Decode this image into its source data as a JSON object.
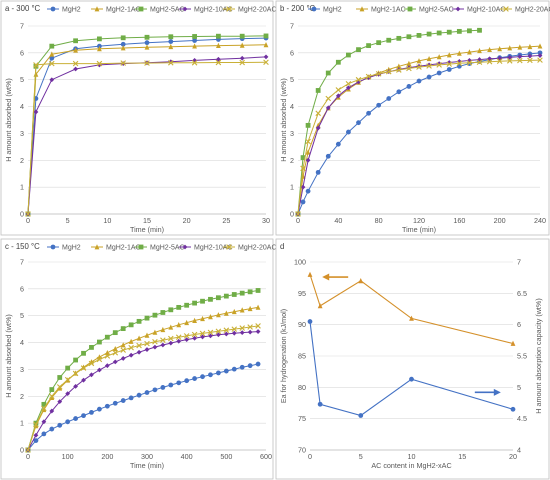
{
  "colors": {
    "MgH2": "#4472c4",
    "MgH2-1AC": "#c9a227",
    "MgH2-5AC": "#70ad47",
    "MgH2-10AC": "#7030a0",
    "MgH2-20AC": "#c9b037",
    "orange": "#d4902a"
  },
  "chart_data": [
    {
      "panel": "a",
      "type": "line",
      "title": "a - 300 °C",
      "xlabel": "Time (min)",
      "ylabel": "H amount absorbed (wt%)",
      "xlim": [
        0,
        30
      ],
      "ylim": [
        0,
        7
      ],
      "xticks": [
        0,
        5,
        10,
        15,
        20,
        25,
        30
      ],
      "yticks": [
        0,
        1,
        2,
        3,
        4,
        5,
        6,
        7
      ],
      "legend": "top",
      "series": [
        {
          "name": "MgH2",
          "marker": "circle",
          "x": [
            0,
            1,
            3,
            6,
            9,
            12,
            15,
            18,
            21,
            24,
            27,
            30
          ],
          "y": [
            0,
            4.3,
            5.8,
            6.15,
            6.25,
            6.32,
            6.38,
            6.42,
            6.46,
            6.5,
            6.53,
            6.55
          ]
        },
        {
          "name": "MgH2-1AC",
          "marker": "triangle",
          "x": [
            0,
            1,
            3,
            6,
            9,
            12,
            15,
            18,
            21,
            24,
            27,
            30
          ],
          "y": [
            0,
            5.2,
            5.95,
            6.1,
            6.15,
            6.18,
            6.21,
            6.23,
            6.25,
            6.27,
            6.28,
            6.3
          ]
        },
        {
          "name": "MgH2-5AC",
          "marker": "square",
          "x": [
            0,
            1,
            3,
            6,
            9,
            12,
            15,
            18,
            21,
            24,
            27,
            30
          ],
          "y": [
            0,
            5.5,
            6.25,
            6.45,
            6.52,
            6.56,
            6.58,
            6.6,
            6.61,
            6.62,
            6.62,
            6.63
          ]
        },
        {
          "name": "MgH2-10AC",
          "marker": "diamond",
          "x": [
            0,
            1,
            3,
            6,
            9,
            12,
            15,
            18,
            21,
            24,
            27,
            30
          ],
          "y": [
            0,
            3.8,
            5.0,
            5.4,
            5.55,
            5.6,
            5.63,
            5.67,
            5.72,
            5.76,
            5.8,
            5.85
          ]
        },
        {
          "name": "MgH2-20AC",
          "marker": "x",
          "x": [
            0,
            1,
            3,
            6,
            9,
            12,
            15,
            18,
            21,
            24,
            27,
            30
          ],
          "y": [
            0,
            5.55,
            5.6,
            5.6,
            5.6,
            5.62,
            5.62,
            5.63,
            5.63,
            5.64,
            5.64,
            5.65
          ]
        }
      ]
    },
    {
      "panel": "b",
      "type": "line",
      "title": "b - 200 °C",
      "xlabel": "Time (min)",
      "ylabel": "H amount absorbed (wt%)",
      "xlim": [
        0,
        240
      ],
      "ylim": [
        0,
        7
      ],
      "xticks": [
        0,
        40,
        80,
        120,
        160,
        200,
        240
      ],
      "yticks": [
        0,
        1,
        2,
        3,
        4,
        5,
        6,
        7
      ],
      "legend": "top",
      "series": [
        {
          "name": "MgH2",
          "marker": "circle",
          "x": [
            0,
            5,
            10,
            20,
            30,
            40,
            50,
            60,
            70,
            80,
            90,
            100,
            110,
            120,
            130,
            140,
            150,
            160,
            170,
            180,
            190,
            200,
            210,
            220,
            230,
            240
          ],
          "y": [
            0,
            0.45,
            0.85,
            1.55,
            2.15,
            2.6,
            3.05,
            3.4,
            3.75,
            4.05,
            4.3,
            4.55,
            4.75,
            4.95,
            5.1,
            5.25,
            5.38,
            5.5,
            5.6,
            5.68,
            5.75,
            5.82,
            5.87,
            5.92,
            5.96,
            6.0
          ]
        },
        {
          "name": "MgH2-1AC",
          "marker": "triangle",
          "x": [
            0,
            5,
            10,
            20,
            30,
            40,
            50,
            60,
            70,
            80,
            90,
            100,
            110,
            120,
            130,
            140,
            150,
            160,
            170,
            180,
            190,
            200,
            210,
            220,
            230,
            240
          ],
          "y": [
            0,
            1.4,
            2.3,
            3.3,
            3.95,
            4.35,
            4.65,
            4.9,
            5.1,
            5.25,
            5.38,
            5.5,
            5.6,
            5.7,
            5.78,
            5.85,
            5.92,
            5.98,
            6.03,
            6.08,
            6.12,
            6.15,
            6.18,
            6.21,
            6.23,
            6.25
          ]
        },
        {
          "name": "MgH2-5AC",
          "marker": "square",
          "x": [
            0,
            5,
            10,
            20,
            30,
            40,
            50,
            60,
            70,
            80,
            90,
            100,
            110,
            120,
            130,
            140,
            150,
            160,
            170,
            180
          ],
          "y": [
            0,
            2.1,
            3.3,
            4.6,
            5.25,
            5.65,
            5.92,
            6.12,
            6.27,
            6.38,
            6.47,
            6.54,
            6.6,
            6.65,
            6.7,
            6.74,
            6.77,
            6.8,
            6.82,
            6.84
          ]
        },
        {
          "name": "MgH2-10AC",
          "marker": "diamond",
          "x": [
            0,
            5,
            10,
            20,
            30,
            40,
            50,
            60,
            70,
            80,
            90,
            100,
            110,
            120,
            130,
            140,
            150,
            160,
            170,
            180,
            190,
            200,
            210,
            220,
            230,
            240
          ],
          "y": [
            0,
            1.0,
            2.0,
            3.2,
            3.95,
            4.4,
            4.7,
            4.92,
            5.08,
            5.2,
            5.3,
            5.38,
            5.45,
            5.5,
            5.55,
            5.6,
            5.64,
            5.68,
            5.72,
            5.75,
            5.78,
            5.8,
            5.83,
            5.86,
            5.88,
            5.9
          ]
        },
        {
          "name": "MgH2-20AC",
          "marker": "x",
          "x": [
            0,
            5,
            10,
            20,
            30,
            40,
            50,
            60,
            70,
            80,
            90,
            100,
            110,
            120,
            130,
            140,
            150,
            160,
            170,
            180,
            190,
            200,
            210,
            220,
            230,
            240
          ],
          "y": [
            0,
            1.7,
            2.7,
            3.75,
            4.3,
            4.62,
            4.85,
            5.0,
            5.12,
            5.22,
            5.3,
            5.36,
            5.42,
            5.47,
            5.51,
            5.55,
            5.58,
            5.61,
            5.63,
            5.65,
            5.67,
            5.69,
            5.7,
            5.71,
            5.72,
            5.73
          ]
        }
      ]
    },
    {
      "panel": "c",
      "type": "line",
      "title": "c - 150 °C",
      "xlabel": "Time (min)",
      "ylabel": "H amount absorbed (wt%)",
      "xlim": [
        0,
        600
      ],
      "ylim": [
        0,
        7
      ],
      "xticks": [
        0,
        100,
        200,
        300,
        400,
        500,
        600
      ],
      "yticks": [
        0,
        1,
        2,
        3,
        4,
        5,
        6,
        7
      ],
      "legend": "top",
      "series": [
        {
          "name": "MgH2",
          "marker": "circle",
          "x": [
            0,
            20,
            40,
            60,
            80,
            100,
            120,
            140,
            160,
            180,
            200,
            220,
            240,
            260,
            280,
            300,
            320,
            340,
            360,
            380,
            400,
            420,
            440,
            460,
            480,
            500,
            520,
            540,
            560,
            580
          ],
          "y": [
            0,
            0.35,
            0.6,
            0.78,
            0.92,
            1.05,
            1.17,
            1.28,
            1.4,
            1.52,
            1.63,
            1.74,
            1.84,
            1.94,
            2.04,
            2.14,
            2.24,
            2.33,
            2.42,
            2.5,
            2.58,
            2.66,
            2.73,
            2.8,
            2.87,
            2.94,
            3.01,
            3.08,
            3.14,
            3.2
          ]
        },
        {
          "name": "MgH2-1AC",
          "marker": "triangle",
          "x": [
            0,
            20,
            40,
            60,
            80,
            100,
            120,
            140,
            160,
            180,
            200,
            220,
            240,
            260,
            280,
            300,
            320,
            340,
            360,
            380,
            400,
            420,
            440,
            460,
            480,
            500,
            520,
            540,
            560,
            580
          ],
          "y": [
            0,
            0.9,
            1.5,
            1.95,
            2.3,
            2.6,
            2.86,
            3.08,
            3.28,
            3.46,
            3.62,
            3.77,
            3.91,
            4.04,
            4.16,
            4.27,
            4.38,
            4.48,
            4.57,
            4.66,
            4.74,
            4.82,
            4.89,
            4.96,
            5.03,
            5.09,
            5.15,
            5.21,
            5.26,
            5.31
          ]
        },
        {
          "name": "MgH2-5AC",
          "marker": "square",
          "x": [
            0,
            20,
            40,
            60,
            80,
            100,
            120,
            140,
            160,
            180,
            200,
            220,
            240,
            260,
            280,
            300,
            320,
            340,
            360,
            380,
            400,
            420,
            440,
            460,
            480,
            500,
            520,
            540,
            560,
            580
          ],
          "y": [
            0,
            1.0,
            1.7,
            2.25,
            2.7,
            3.05,
            3.35,
            3.6,
            3.82,
            4.02,
            4.2,
            4.37,
            4.52,
            4.66,
            4.79,
            4.91,
            5.02,
            5.12,
            5.22,
            5.31,
            5.39,
            5.47,
            5.54,
            5.61,
            5.67,
            5.73,
            5.79,
            5.84,
            5.89,
            5.94
          ]
        },
        {
          "name": "MgH2-10AC",
          "marker": "diamond",
          "x": [
            0,
            20,
            40,
            60,
            80,
            100,
            120,
            140,
            160,
            180,
            200,
            220,
            240,
            260,
            280,
            300,
            320,
            340,
            360,
            380,
            400,
            420,
            440,
            460,
            480,
            500,
            520,
            540,
            560,
            580
          ],
          "y": [
            0,
            0.55,
            1.05,
            1.45,
            1.8,
            2.1,
            2.37,
            2.6,
            2.8,
            2.98,
            3.14,
            3.28,
            3.41,
            3.53,
            3.64,
            3.74,
            3.83,
            3.91,
            3.98,
            4.05,
            4.11,
            4.16,
            4.21,
            4.25,
            4.29,
            4.32,
            4.35,
            4.37,
            4.39,
            4.41
          ]
        },
        {
          "name": "MgH2-20AC",
          "marker": "x",
          "x": [
            0,
            20,
            40,
            60,
            80,
            100,
            120,
            140,
            160,
            180,
            200,
            220,
            240,
            260,
            280,
            300,
            320,
            340,
            360,
            380,
            400,
            420,
            440,
            460,
            480,
            500,
            520,
            540,
            560,
            580
          ],
          "y": [
            0,
            0.95,
            1.55,
            2.0,
            2.35,
            2.62,
            2.85,
            3.05,
            3.22,
            3.37,
            3.5,
            3.62,
            3.72,
            3.81,
            3.89,
            3.96,
            4.03,
            4.09,
            4.15,
            4.2,
            4.25,
            4.3,
            4.34,
            4.38,
            4.42,
            4.46,
            4.5,
            4.54,
            4.58,
            4.62
          ]
        }
      ]
    },
    {
      "panel": "d",
      "type": "line",
      "title": "d",
      "xlabel": "AC content in MgH2-xAC",
      "ylabel": "Ea for hydrogenation (kJ/mol)",
      "ylabel2": "H amount absorption capacity (wt%)",
      "xlim": [
        0,
        20
      ],
      "ylim": [
        70,
        100
      ],
      "y2lim": [
        4,
        7
      ],
      "xticks": [
        0,
        5,
        10,
        15,
        20
      ],
      "yticks": [
        70,
        75,
        80,
        85,
        90,
        95,
        100
      ],
      "y2ticks": [
        4,
        4.5,
        5,
        5.5,
        6,
        6.5,
        7
      ],
      "series": [
        {
          "name": "Ea",
          "marker": "circle",
          "axis": "left",
          "x": [
            0,
            1,
            5,
            10,
            20
          ],
          "y": [
            90.5,
            77.3,
            75.5,
            81.3,
            76.5
          ]
        },
        {
          "name": "Capacity",
          "marker": "triangle",
          "axis": "right",
          "x": [
            0,
            1,
            5,
            10,
            20
          ],
          "y": [
            6.8,
            6.3,
            6.7,
            6.1,
            5.7
          ]
        }
      ]
    }
  ]
}
